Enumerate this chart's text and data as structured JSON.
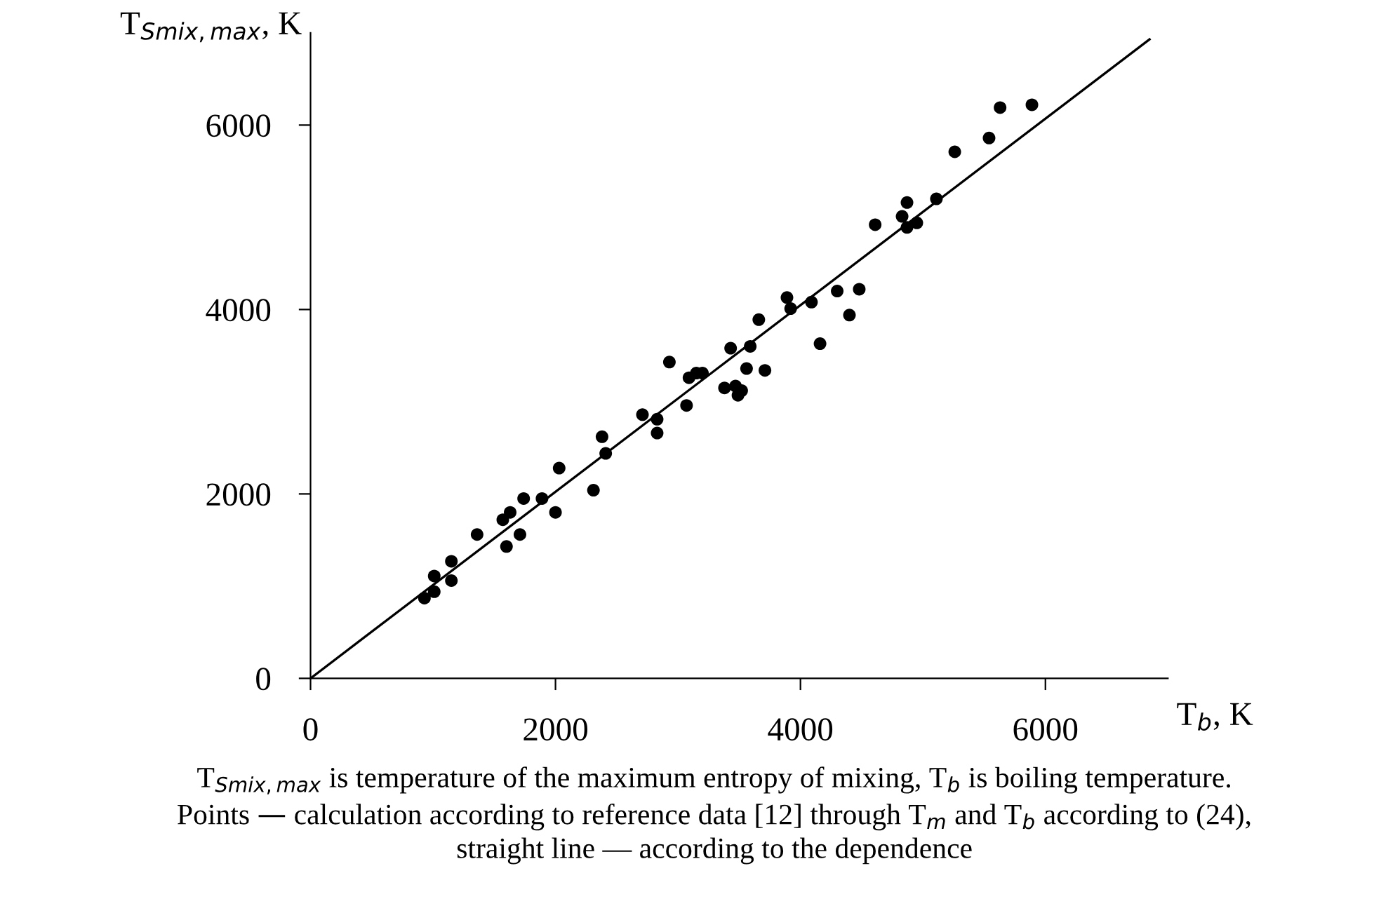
{
  "chart_data": {
    "type": "scatter",
    "ylabel": "T$_{Smix,max}$, K",
    "xlabel": "T$_{b}$, K",
    "xlim": [
      0,
      7000
    ],
    "ylim": [
      0,
      7000
    ],
    "xticks": [
      0,
      2000,
      4000,
      6000
    ],
    "yticks": [
      0,
      2000,
      4000,
      6000
    ],
    "grid": false,
    "legend": false,
    "marker": "circle",
    "series": [
      {
        "color": "#000000",
        "x": [
          930,
          1010,
          1010,
          1150,
          1150,
          1360,
          1570,
          1630,
          1600,
          1710,
          1740,
          1890,
          2000,
          2030,
          2310,
          2380,
          2410,
          2710,
          2830,
          2830,
          2930,
          3070,
          3090,
          3150,
          3200,
          3380,
          3430,
          3470,
          3490,
          3520,
          3560,
          3590,
          3660,
          3710,
          3890,
          3920,
          4090,
          4160,
          4300,
          4400,
          4480,
          4610,
          4830,
          4870,
          4870,
          4950,
          5110,
          5260,
          5540,
          5630,
          5890
        ],
        "values": [
          870,
          940,
          1110,
          1060,
          1270,
          1560,
          1720,
          1800,
          1430,
          1560,
          1950,
          1950,
          1800,
          2280,
          2040,
          2620,
          2440,
          2860,
          2810,
          2660,
          3430,
          2960,
          3260,
          3310,
          3310,
          3150,
          3580,
          3170,
          3070,
          3120,
          3360,
          3600,
          3890,
          3340,
          4130,
          4010,
          4080,
          3630,
          4200,
          3940,
          4220,
          4920,
          5010,
          5160,
          4890,
          4940,
          5200,
          5710,
          5860,
          6190,
          6220
        ]
      },
      {
        "type": "line",
        "color": "#000000",
        "marker": "none",
        "line_style": "solid",
        "x": [
          0,
          6850
        ],
        "values": [
          0,
          6930
        ]
      }
    ],
    "annotations": [
      "T$_{Smix,max}$ is temperature of the maximum entropy of mixing, T$_{b}$ is boiling temperature.",
      "Points — calculation according to reference data [12] through T$_{m}$ and T$_{b}$ according to (24),",
      "straight line — according to the dependence"
    ]
  }
}
